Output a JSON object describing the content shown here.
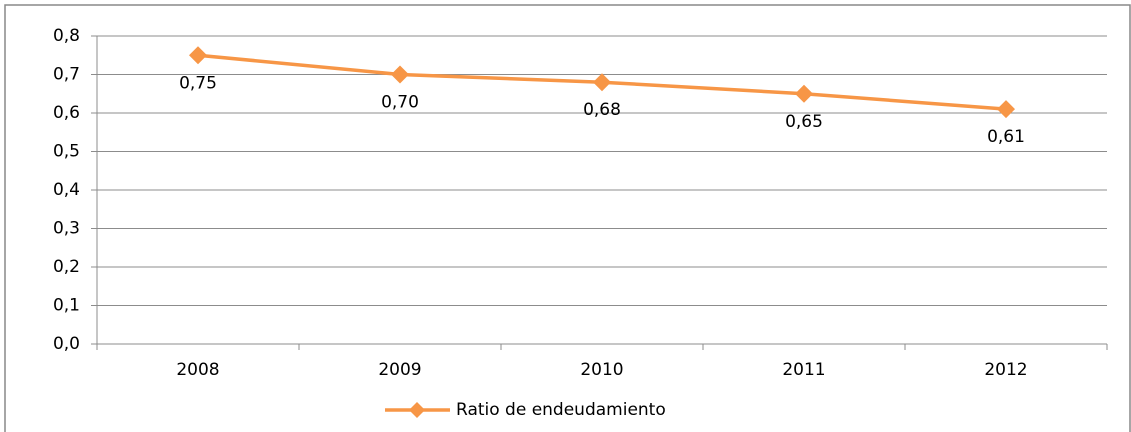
{
  "chart_data": {
    "type": "line",
    "categories": [
      "2008",
      "2009",
      "2010",
      "2011",
      "2012"
    ],
    "series": [
      {
        "name": "Ratio de endeudamiento",
        "color": "#f79646",
        "values": [
          0.75,
          0.7,
          0.68,
          0.65,
          0.61
        ],
        "value_labels": [
          "0,75",
          "0,70",
          "0,68",
          "0,65",
          "0,61"
        ]
      }
    ],
    "ylim": [
      0,
      0.8
    ],
    "yticks": [
      {
        "value": 0,
        "label": "0,0"
      },
      {
        "value": 0.1,
        "label": "0,1"
      },
      {
        "value": 0.2,
        "label": "0,2"
      },
      {
        "value": 0.3,
        "label": "0,3"
      },
      {
        "value": 0.4,
        "label": "0,4"
      },
      {
        "value": 0.5,
        "label": "0,5"
      },
      {
        "value": 0.6,
        "label": "0,6"
      },
      {
        "value": 0.7,
        "label": "0,7"
      },
      {
        "value": 0.8,
        "label": "0,8"
      }
    ],
    "grid": true,
    "legend": "bottom"
  }
}
